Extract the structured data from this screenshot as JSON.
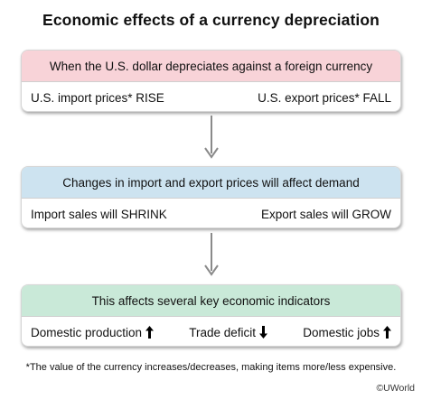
{
  "title": "Economic effects of a currency depreciation",
  "boxes": [
    {
      "header": "When the U.S. dollar depreciates against a foreign currency",
      "items": [
        {
          "label": "U.S. import prices* RISE"
        },
        {
          "label": "U.S. export prices* FALL"
        }
      ],
      "color": "#f8d3d8"
    },
    {
      "header": "Changes in import and export prices will affect demand",
      "items": [
        {
          "label": "Import sales will SHRINK"
        },
        {
          "label": "Export sales will GROW"
        }
      ],
      "color": "#cde3f0"
    },
    {
      "header": "This affects several key economic indicators",
      "items": [
        {
          "label": "Domestic production",
          "direction": "up",
          "icon": "up-arrow-icon"
        },
        {
          "label": "Trade deficit",
          "direction": "down",
          "icon": "down-arrow-icon"
        },
        {
          "label": "Domestic jobs",
          "direction": "up",
          "icon": "up-arrow-icon"
        }
      ],
      "color": "#c9e9d8"
    }
  ],
  "footnote": "*The value of the currency increases/decreases, making items more/less expensive.",
  "brand": "©UWorld"
}
